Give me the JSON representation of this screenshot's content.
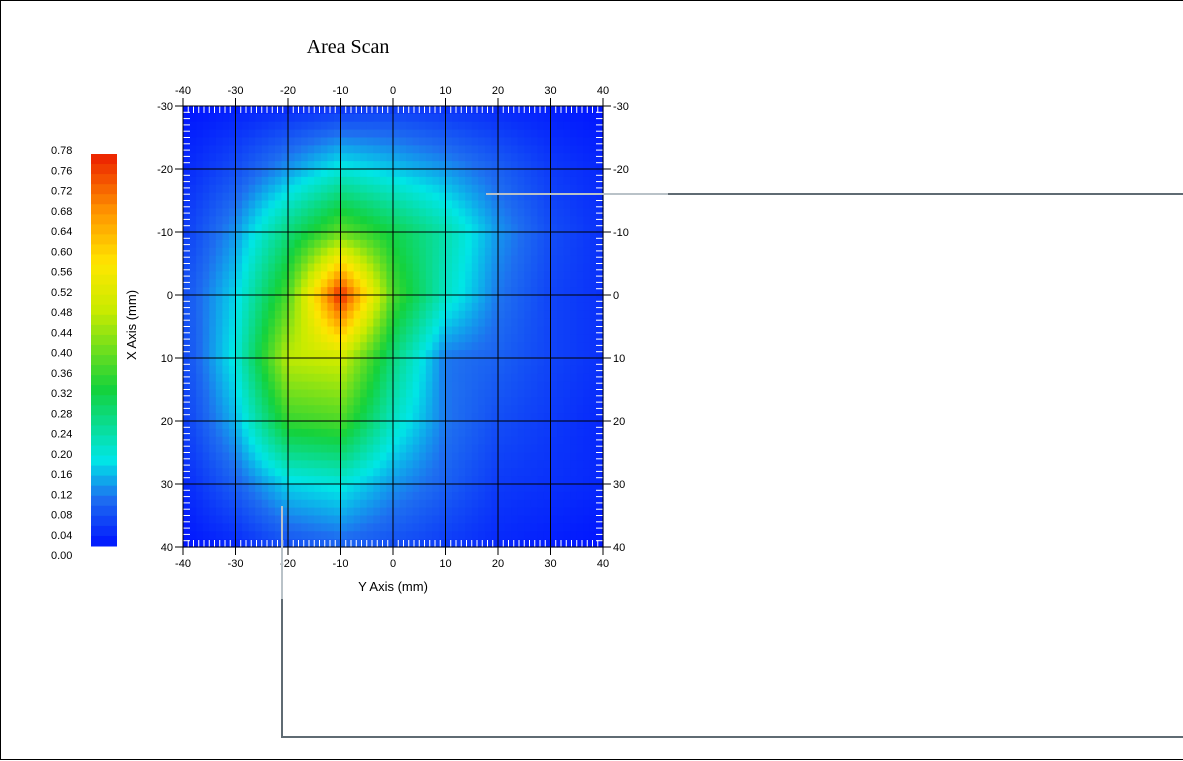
{
  "chart_data": {
    "type": "heatmap",
    "title": "Area Scan",
    "xlabel": "Y Axis (mm)",
    "ylabel": "X Axis (mm)",
    "x_range": [
      -40,
      40
    ],
    "y_range": [
      -30,
      40
    ],
    "x_ticks": [
      "-40",
      "-30",
      "-20",
      "-10",
      "0",
      "10",
      "20",
      "30",
      "40"
    ],
    "y_ticks": [
      "-30",
      "-20",
      "-10",
      "0",
      "10",
      "20",
      "30",
      "40"
    ],
    "x_grid": [
      -40,
      -30,
      -20,
      -10,
      0,
      10,
      20,
      30,
      40
    ],
    "y_grid": [
      -30,
      -20,
      -10,
      0,
      10,
      20,
      30,
      40
    ],
    "z_values": [
      [
        0.0,
        0.01,
        0.02,
        0.03,
        0.04,
        0.03,
        0.02,
        0.01,
        0.0
      ],
      [
        0.02,
        0.06,
        0.12,
        0.18,
        0.15,
        0.12,
        0.08,
        0.04,
        0.02
      ],
      [
        0.04,
        0.12,
        0.26,
        0.38,
        0.3,
        0.22,
        0.12,
        0.06,
        0.03
      ],
      [
        0.06,
        0.16,
        0.36,
        0.78,
        0.36,
        0.2,
        0.1,
        0.05,
        0.03
      ],
      [
        0.05,
        0.18,
        0.46,
        0.48,
        0.26,
        0.1,
        0.08,
        0.05,
        0.03
      ],
      [
        0.04,
        0.14,
        0.34,
        0.36,
        0.2,
        0.1,
        0.06,
        0.04,
        0.02
      ],
      [
        0.02,
        0.08,
        0.16,
        0.18,
        0.12,
        0.08,
        0.04,
        0.03,
        0.02
      ],
      [
        0.0,
        0.02,
        0.06,
        0.08,
        0.06,
        0.04,
        0.02,
        0.01,
        0.0
      ]
    ],
    "colorbar": {
      "min": 0.0,
      "max": 0.78,
      "step": 0.02,
      "labels": [
        "0.78",
        "0.76",
        "0.72",
        "0.68",
        "0.64",
        "0.60",
        "0.56",
        "0.52",
        "0.48",
        "0.44",
        "0.40",
        "0.36",
        "0.32",
        "0.28",
        "0.24",
        "0.20",
        "0.16",
        "0.12",
        "0.08",
        "0.04",
        "0.00"
      ]
    },
    "grid": true
  },
  "colors": {
    "gridline": "#000000",
    "connector": "#5f6b73"
  }
}
